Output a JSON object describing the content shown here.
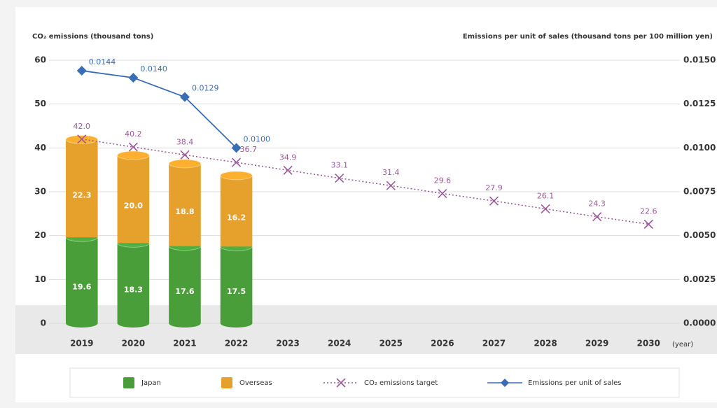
{
  "chart_data": {
    "type": "bar",
    "y_label": "CO₂ emissions (thousand tons)",
    "y2_label": "Emissions per unit of sales (thousand tons per 100 million yen)",
    "x_unit": "(year)",
    "categories": [
      "2019",
      "2020",
      "2021",
      "2022",
      "2023",
      "2024",
      "2025",
      "2026",
      "2027",
      "2028",
      "2029",
      "2030"
    ],
    "series": [
      {
        "name": "Japan",
        "type": "bar",
        "color": "#4a9e3a",
        "values": [
          19.6,
          18.3,
          17.6,
          17.5,
          null,
          null,
          null,
          null,
          null,
          null,
          null,
          null
        ]
      },
      {
        "name": "Overseas",
        "type": "bar",
        "color": "#e6a02c",
        "values": [
          22.3,
          20.0,
          18.8,
          16.2,
          null,
          null,
          null,
          null,
          null,
          null,
          null,
          null
        ],
        "value_labels": [
          "22.3",
          "20.0",
          "18.8",
          "16.2",
          null,
          null,
          null,
          null,
          null,
          null,
          null,
          null
        ]
      },
      {
        "name": "CO₂ emissions target",
        "type": "line",
        "color": "#9a5a9a",
        "linestyle": "dotted",
        "marker": "x",
        "values": [
          42.0,
          40.2,
          38.4,
          36.7,
          34.9,
          33.1,
          31.4,
          29.6,
          27.9,
          26.1,
          24.3,
          22.6
        ],
        "value_labels": [
          "42.0",
          "40.2",
          "38.4",
          "36.7",
          "34.9",
          "33.1",
          "31.4",
          "29.6",
          "27.9",
          "26.1",
          "24.3",
          "22.6"
        ]
      },
      {
        "name": "Emissions per unit of sales",
        "type": "line",
        "axis": "y2",
        "color": "#3a6db5",
        "linestyle": "solid",
        "marker": "diamond",
        "values": [
          0.0144,
          0.014,
          0.0129,
          0.01,
          null,
          null,
          null,
          null,
          null,
          null,
          null,
          null
        ],
        "value_labels": [
          "0.0144",
          "0.0140",
          "0.0129",
          "0.0100",
          null,
          null,
          null,
          null,
          null,
          null,
          null,
          null
        ]
      }
    ],
    "ylim": [
      0,
      60
    ],
    "yticks": [
      0,
      10,
      20,
      30,
      40,
      50,
      60
    ],
    "y2lim": [
      0,
      0.015
    ],
    "y2ticks": [
      {
        "value": 0,
        "label": "0.0000"
      },
      {
        "value": 0.0025,
        "label": "0.0025"
      },
      {
        "value": 0.005,
        "label": "0.0050"
      },
      {
        "value": 0.0075,
        "label": "0.0075"
      },
      {
        "value": 0.01,
        "label": "0.0100"
      },
      {
        "value": 0.0125,
        "label": "0.0125"
      },
      {
        "value": 0.015,
        "label": "0.0150"
      }
    ],
    "grid": true,
    "legend": "bottom"
  }
}
